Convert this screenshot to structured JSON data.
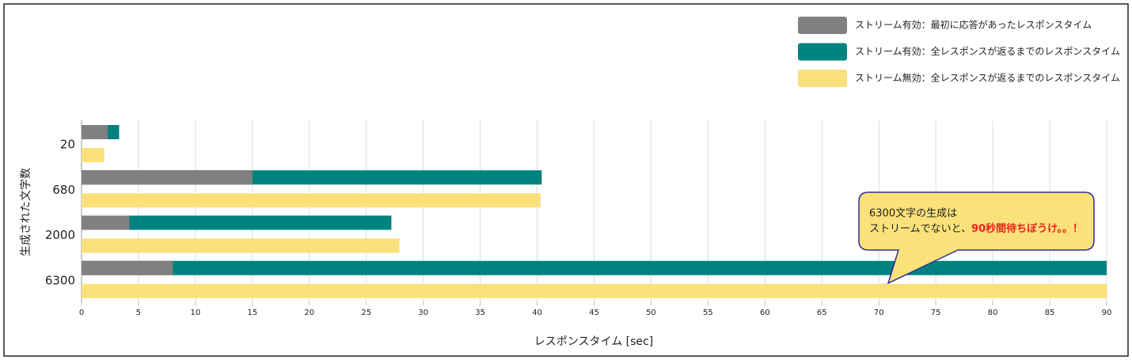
{
  "chart_data": {
    "type": "hbar",
    "x_label": "レスポンスタイム [sec]",
    "y_label": "生成された文字数",
    "categories": [
      "20",
      "680",
      "2000",
      "6300"
    ],
    "series": [
      {
        "name": "ストリーム有効：最初に応答があったレスポンスタイム",
        "color": "#808080",
        "values": [
          2.3,
          15.0,
          4.2,
          8.0
        ]
      },
      {
        "name": "ストリーム有効：全レスポンスが返るまでのレスポンスタイム",
        "color": "#00827f",
        "values": [
          3.3,
          40.4,
          27.2,
          90.0
        ]
      },
      {
        "name": "ストリーム無効：全レスポンスが返るまでのレスポンスタイム",
        "color": "#f9e07a",
        "values": [
          2.0,
          40.3,
          27.9,
          90.0
        ]
      }
    ],
    "xlim": [
      0,
      90
    ],
    "xticks": [
      0,
      5,
      10,
      15,
      20,
      25,
      30,
      35,
      40,
      45,
      50,
      55,
      60,
      65,
      70,
      75,
      80,
      85,
      90
    ],
    "grid": true,
    "legend": "top-right",
    "annotation": {
      "line1": "6300文字の生成は",
      "line2": "ストリームでないと、",
      "emphasis": "90秒間待ちぼうけ。。！"
    }
  }
}
